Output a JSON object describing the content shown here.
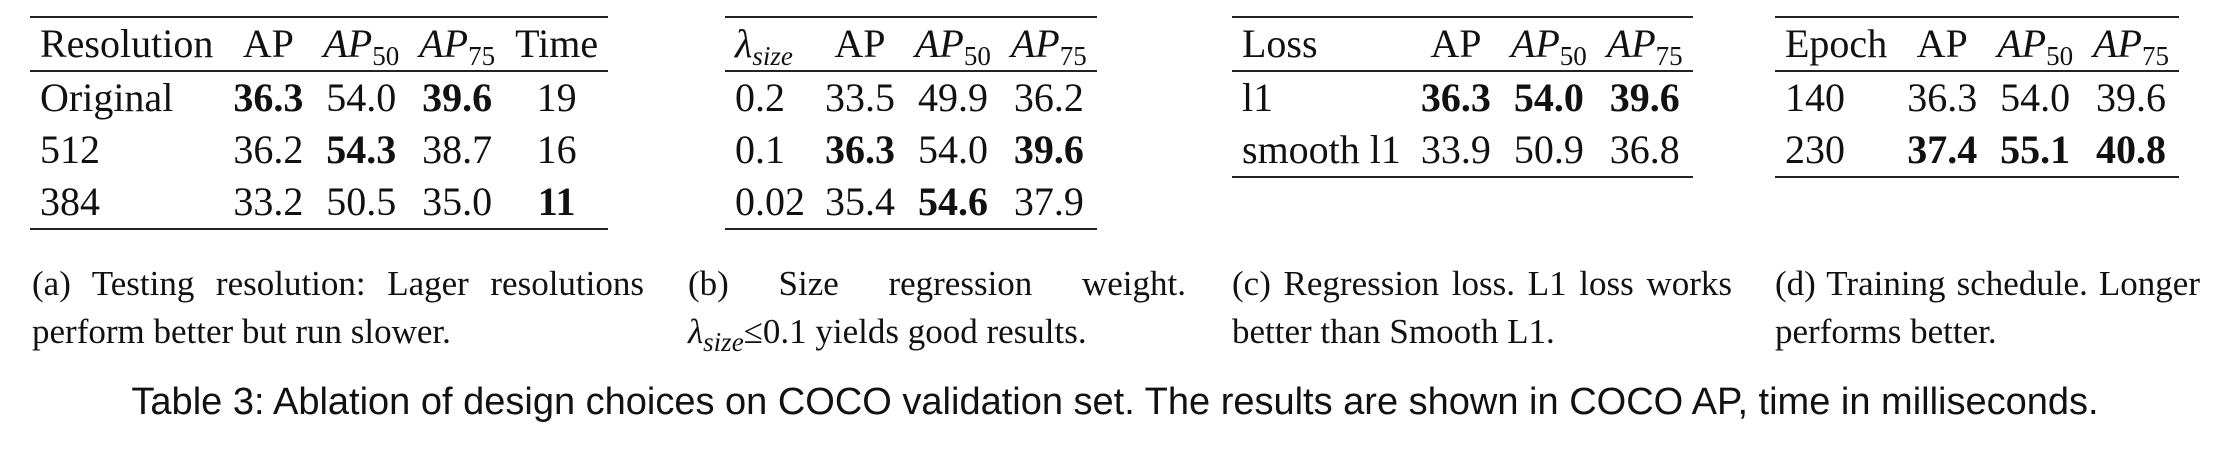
{
  "tables": {
    "a": {
      "headers": [
        "Resolution",
        "AP",
        "AP",
        "AP",
        "Time"
      ],
      "header_subs": [
        "",
        "",
        "50",
        "75",
        ""
      ],
      "rows": [
        [
          "Original",
          "36.3",
          "54.0",
          "39.6",
          "19"
        ],
        [
          "512",
          "36.2",
          "54.3",
          "38.7",
          "16"
        ],
        [
          "384",
          "33.2",
          "50.5",
          "35.0",
          "11"
        ]
      ],
      "caption": "(a) Testing resolution: Lager resolutions perform better but run slower."
    },
    "b": {
      "headers": [
        "λ",
        "AP",
        "AP",
        "AP"
      ],
      "header_subs": [
        "size",
        "",
        "50",
        "75"
      ],
      "rows": [
        [
          "0.2",
          "33.5",
          "49.9",
          "36.2"
        ],
        [
          "0.1",
          "36.3",
          "54.0",
          "39.6"
        ],
        [
          "0.02",
          "35.4",
          "54.6",
          "37.9"
        ]
      ],
      "caption_part1": "(b) Size regression weight.",
      "caption_lambda": "λ",
      "caption_lambda_sub": "size",
      "caption_part2": "≤0.1 yields good results."
    },
    "c": {
      "headers": [
        "Loss",
        "AP",
        "AP",
        "AP"
      ],
      "header_subs": [
        "",
        "",
        "50",
        "75"
      ],
      "rows": [
        [
          "l1",
          "36.3",
          "54.0",
          "39.6"
        ],
        [
          "smooth l1",
          "33.9",
          "50.9",
          "36.8"
        ]
      ],
      "caption": "(c) Regression loss. L1 loss works better than Smooth L1."
    },
    "d": {
      "headers": [
        "Epoch",
        "AP",
        "AP",
        "AP"
      ],
      "header_subs": [
        "",
        "",
        "50",
        "75"
      ],
      "rows": [
        [
          "140",
          "36.3",
          "54.0",
          "39.6"
        ],
        [
          "230",
          "37.4",
          "55.1",
          "40.8"
        ]
      ],
      "caption": "(d) Training schedule. Longer performs better."
    }
  },
  "main_caption": "Table 3: Ablation of design choices on COCO validation set. The results are shown in COCO AP, time in milliseconds."
}
